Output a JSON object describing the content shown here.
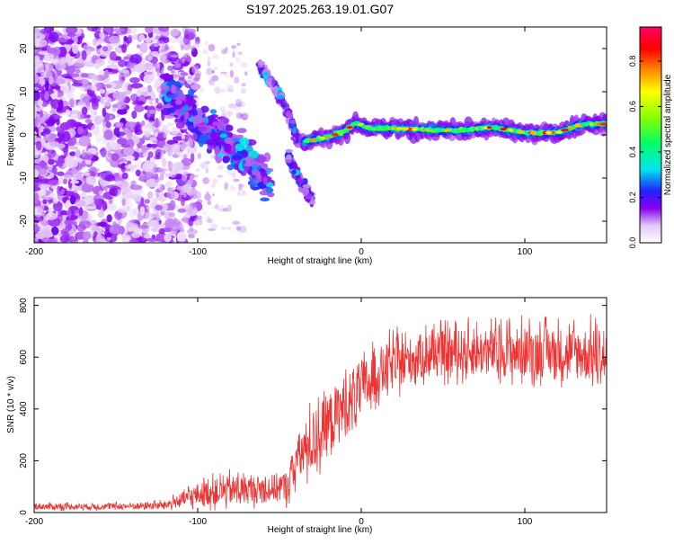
{
  "title": "S197.2025.263.19.01.G07",
  "chart_data": [
    {
      "type": "heatmap",
      "title": "S197.2025.263.19.01.G07",
      "xlabel": "Height of straight line (km)",
      "ylabel": "Frequency (Hz)",
      "xlim": [
        -200,
        150
      ],
      "ylim": [
        -25,
        25
      ],
      "xticks": [
        -200,
        -100,
        0,
        100
      ],
      "yticks": [
        -20,
        -10,
        0,
        10,
        20
      ],
      "colorbar": {
        "label": "Normalized spectral amplitude",
        "range": [
          0,
          0.95
        ],
        "ticks": [
          0.0,
          0.2,
          0.4,
          0.6,
          0.8
        ],
        "tick_labels": [
          "0.0",
          "0.2",
          "0.4",
          "0.6",
          "0.8"
        ]
      },
      "ridge": [
        {
          "x": -35,
          "f": -1.5
        },
        {
          "x": -20,
          "f": -0.5
        },
        {
          "x": -10,
          "f": 1.0
        },
        {
          "x": -3,
          "f": 2.8
        },
        {
          "x": 5,
          "f": 1.5
        },
        {
          "x": 20,
          "f": 1.5
        },
        {
          "x": 40,
          "f": 1.2
        },
        {
          "x": 60,
          "f": 1.0
        },
        {
          "x": 80,
          "f": 1.8
        },
        {
          "x": 100,
          "f": 0.5
        },
        {
          "x": 120,
          "f": 0.5
        },
        {
          "x": 135,
          "f": 2.5
        },
        {
          "x": 150,
          "f": 2.5
        }
      ],
      "branches": [
        {
          "name": "upper",
          "points": [
            {
              "x": -62,
              "f": 16
            },
            {
              "x": -48,
              "f": 8
            },
            {
              "x": -38,
              "f": -2
            }
          ]
        },
        {
          "name": "lower",
          "points": [
            {
              "x": -45,
              "f": -5
            },
            {
              "x": -38,
              "f": -10
            },
            {
              "x": -30,
              "f": -15
            }
          ]
        },
        {
          "name": "diffuse",
          "points": [
            {
              "x": -120,
              "f": 10
            },
            {
              "x": -100,
              "f": 3
            },
            {
              "x": -80,
              "f": -2
            },
            {
              "x": -65,
              "f": -8
            },
            {
              "x": -55,
              "f": -12
            }
          ]
        }
      ]
    },
    {
      "type": "line",
      "xlabel": "Height of straight line (km)",
      "ylabel": "SNR (10 * v/v)",
      "xlim": [
        -200,
        150
      ],
      "ylim": [
        0,
        830
      ],
      "xticks": [
        -200,
        -100,
        0,
        100
      ],
      "yticks": [
        0,
        200,
        400,
        600,
        800
      ],
      "color": "#ee3333",
      "series": [
        {
          "name": "SNR envelope",
          "x": [
            -200,
            -170,
            -140,
            -120,
            -110,
            -100,
            -80,
            -60,
            -45,
            -40,
            -30,
            -20,
            -10,
            0,
            10,
            20,
            30,
            40,
            60,
            80,
            100,
            120,
            140,
            150
          ],
          "mean": [
            22,
            22,
            23,
            27,
            45,
            65,
            80,
            85,
            95,
            190,
            260,
            330,
            400,
            460,
            530,
            560,
            580,
            600,
            610,
            610,
            610,
            610,
            600,
            580
          ],
          "noise": [
            15,
            15,
            16,
            20,
            35,
            55,
            70,
            65,
            75,
            110,
            150,
            150,
            150,
            140,
            120,
            120,
            110,
            110,
            110,
            115,
            120,
            120,
            130,
            130
          ]
        }
      ]
    }
  ]
}
